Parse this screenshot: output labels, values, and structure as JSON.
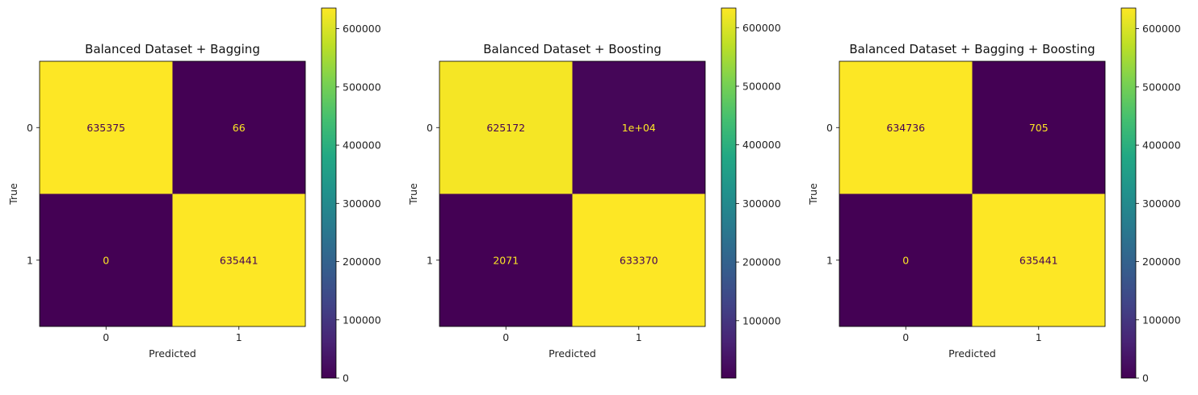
{
  "chart_data": [
    {
      "type": "heatmap",
      "title": "Balanced Dataset + Bagging",
      "xlabel": "Predicted",
      "ylabel": "True",
      "x_categories": [
        "0",
        "1"
      ],
      "y_categories": [
        "0",
        "1"
      ],
      "values": [
        [
          635375,
          66
        ],
        [
          0,
          635441
        ]
      ],
      "cell_labels": [
        [
          "635375",
          "66"
        ],
        [
          "0",
          "635441"
        ]
      ],
      "colormap": "viridis",
      "colorbar": {
        "min": 0,
        "max": 635441,
        "ticks": [
          0,
          100000,
          200000,
          300000,
          400000,
          500000,
          600000
        ],
        "tick_labels": [
          "0",
          "100000",
          "200000",
          "300000",
          "400000",
          "500000",
          "600000"
        ]
      }
    },
    {
      "type": "heatmap",
      "title": "Balanced Dataset + Boosting",
      "xlabel": "Predicted",
      "ylabel": "True",
      "x_categories": [
        "0",
        "1"
      ],
      "y_categories": [
        "0",
        "1"
      ],
      "values": [
        [
          625172,
          10269
        ],
        [
          2071,
          633370
        ]
      ],
      "cell_labels": [
        [
          "625172",
          "1e+04"
        ],
        [
          "2071",
          "633370"
        ]
      ],
      "colormap": "viridis",
      "colorbar": {
        "min": 2071,
        "max": 633370,
        "ticks": [
          100000,
          200000,
          300000,
          400000,
          500000,
          600000
        ],
        "tick_labels": [
          "100000",
          "200000",
          "300000",
          "400000",
          "500000",
          "600000"
        ]
      }
    },
    {
      "type": "heatmap",
      "title": "Balanced Dataset + Bagging + Boosting",
      "xlabel": "Predicted",
      "ylabel": "True",
      "x_categories": [
        "0",
        "1"
      ],
      "y_categories": [
        "0",
        "1"
      ],
      "values": [
        [
          634736,
          705
        ],
        [
          0,
          635441
        ]
      ],
      "cell_labels": [
        [
          "634736",
          "705"
        ],
        [
          "0",
          "635441"
        ]
      ],
      "colormap": "viridis",
      "colorbar": {
        "min": 0,
        "max": 635441,
        "ticks": [
          0,
          100000,
          200000,
          300000,
          400000,
          500000,
          600000
        ],
        "tick_labels": [
          "0",
          "100000",
          "200000",
          "300000",
          "400000",
          "500000",
          "600000"
        ]
      }
    }
  ],
  "colors": {
    "viridis_low": "#440154",
    "viridis_high": "#fde725",
    "text_on_dark": "#fde725",
    "text_on_light": "#440154"
  }
}
